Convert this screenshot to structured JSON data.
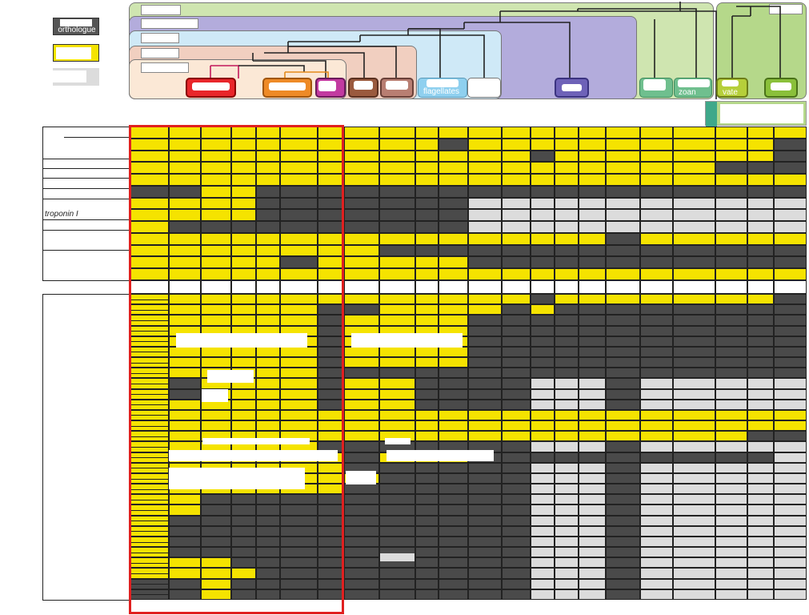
{
  "legend": {
    "orthologue_label": "orthologue",
    "colors": {
      "present": "#f5e300",
      "absent": "#4a4a4a",
      "no_data": "#dcdcdc",
      "grid": "#222222",
      "highlight": "#e02020"
    }
  },
  "gene_labels": {
    "troponin": "troponin I"
  },
  "taxa": [
    {
      "name": "",
      "color": "#e8262a"
    },
    {
      "name": "",
      "color": "#ee8a26"
    },
    {
      "name": "",
      "color": "#c23aa0"
    },
    {
      "name": "",
      "color": "#9a5a3e"
    },
    {
      "name": "",
      "color": "#b87e72"
    },
    {
      "name": "flagellates",
      "color": "#8fd0ef"
    },
    {
      "name": "",
      "color": "#ffffff"
    },
    {
      "name": "",
      "color": "#6e62b8"
    },
    {
      "name": "",
      "color": "#6fbf8e"
    },
    {
      "name": "zoan",
      "color": "#6fbf8e"
    },
    {
      "name": "vate",
      "color": "#b6cf3a"
    },
    {
      "name": "",
      "color": "#8ac03a"
    }
  ],
  "matrix": {
    "rows_section1": [
      "YYYYYYYYYYYYYYYYYYYYYYD",
      "YYYYYYYYYYDYYYYYYYYYYDD",
      "YYYYYYYYYYYYYDYYYYYYYDD",
      "YYYYYYYYYYYYYYYYYYYDDDD",
      "YYYYYYYYYYYYYYYYYYYYYYY",
      "DDYYDDDDDDDDDDDDDDDDDDD",
      "YYYYDDDDDDDGGGGGGGGGGGG",
      "YYYYDDDDDDDGGGGGGGGGGGG",
      "YDDDDDDDDDDGGGGGGGGGGGG",
      "YYYYYYYYYYYYYYYYDYYYYYY",
      "YYYYYYYYDDDDDDDDDDDDDDD",
      "YYYYYDYYYYYDDDDDDDDDDDD",
      "YYYYYYYYYYYYYYYYYYYYYYY"
    ],
    "rows_section2": [
      "YYYYYYYYYYYYYDYYYYYYYDD",
      "YYYYYYDDYYYYDYDDDDDDDDD",
      "YYYYYYDYYYYDDDDDDDDDDDD",
      "YYYYYYDYYYYDDDDDDDDDDDD",
      "YYYYYYDYYYYDDDDDDDDDDDD",
      "YYYYYYDYYYYDDDDDDDDDDDD",
      "YYYYYYDYYYYDDDDDDDDDDDD",
      "YYYYYYDDDDDDDDDDDDDDDDD",
      "YDYYYYDYYDDDDGGGDGGGGGG",
      "YDYYYYDYYDDDDGGGDGGGGGG",
      "YYYYYYDYYDDDDGGGDGGGGGG",
      "YYYYYYYYYYYYYYYYYYYYYYD",
      "YYYYYYYYYYYYYYYYYYYYYYY",
      "YYYYYYYYYYYYYYYYYYYYDDY",
      "YYYYYYDDDDDDDGGGDGGGGGG",
      "YYYYYYYDYYYDDDDDDDDDDGG",
      "YYYYYYYDDDDDDGGGDGGGGGG",
      "YYYYYYYYDDDDDGGGDGGGGGG",
      "YYYYYYYDDDDDDGGGDGGGGGG",
      "YYDDDDDDDDDDDGGGDGGGGGG",
      "YYDDDDDDDDDDDGGGDGGGGGG",
      "YDDDDDDDDDDDDGGGDGGGGGG",
      "YDDDDDDDDDDDDGGGDGGGGGG",
      "YDDDDDDDDDDDDGGGDGGGGGG",
      "YDDDDDDDDDDDDGGGDGGGGGG",
      "YYYDDDDDDDDDDGGGDGGGGGG",
      "YYYYDDDDDDDDDGGGDGGGGGG",
      "DDYDDDDDDDDDDGGGDGGGGGG",
      "DDYDDDDDDDDDDGGGDGGGGGG"
    ]
  }
}
